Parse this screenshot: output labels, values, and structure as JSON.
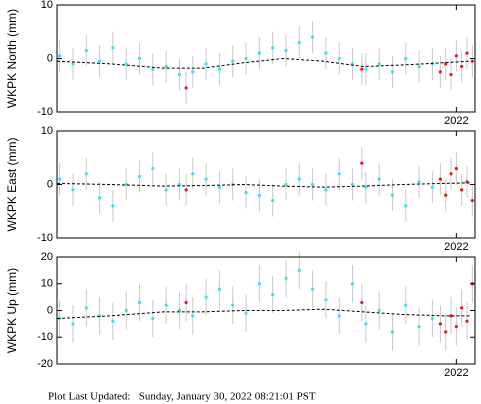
{
  "chart_data": [
    {
      "type": "scatter",
      "ylabel": "WKPK North (mm)",
      "xlim": [
        2019.0,
        2022.14
      ],
      "xticks": [
        2022
      ],
      "ylim": [
        -10,
        10
      ],
      "yticks": [
        10,
        0,
        -10
      ],
      "series": [
        {
          "color": "#2ee6f0",
          "error": 3,
          "x": [
            2019.02,
            2019.12,
            2019.22,
            2019.32,
            2019.42,
            2019.52,
            2019.62,
            2019.72,
            2019.82,
            2019.92,
            2020.02,
            2020.12,
            2020.22,
            2020.32,
            2020.42,
            2020.52,
            2020.62,
            2020.72,
            2020.82,
            2020.92,
            2021.02,
            2021.12,
            2021.22,
            2021.32,
            2021.42,
            2021.52,
            2021.62,
            2021.72,
            2021.82
          ],
          "values": [
            0.5,
            -1,
            1.5,
            -0.5,
            2,
            -1,
            0,
            -2,
            -1.5,
            -3,
            -2.5,
            -1,
            -2,
            -0.5,
            0,
            1,
            2,
            1.5,
            3,
            4,
            1,
            0,
            -1,
            -2,
            -1,
            -2.5,
            0,
            -1.5,
            -1
          ]
        },
        {
          "color": "#e8161c",
          "error": 3,
          "x": [
            2019.97,
            2021.29,
            2021.88,
            2021.92,
            2021.96,
            2022.0,
            2022.04,
            2022.08,
            2022.12
          ],
          "values": [
            -5.5,
            -2,
            -2.5,
            -1,
            -3,
            0.5,
            -1.5,
            1,
            -0.5
          ]
        },
        {
          "type": "line",
          "color": "#000000",
          "x": [
            2019.0,
            2019.4,
            2019.8,
            2020.1,
            2020.4,
            2020.7,
            2021.0,
            2021.3,
            2021.6,
            2021.9,
            2022.1
          ],
          "values": [
            -0.5,
            -1,
            -1.8,
            -1.8,
            -0.8,
            0,
            -0.5,
            -1.5,
            -1.2,
            -0.8,
            -0.5
          ]
        }
      ]
    },
    {
      "type": "scatter",
      "ylabel": "WKPK East (mm)",
      "xlim": [
        2019.0,
        2022.14
      ],
      "xticks": [
        2022
      ],
      "ylim": [
        -10,
        10
      ],
      "yticks": [
        10,
        0,
        -10
      ],
      "series": [
        {
          "color": "#2ee6f0",
          "error": 3,
          "x": [
            2019.02,
            2019.12,
            2019.22,
            2019.32,
            2019.42,
            2019.52,
            2019.62,
            2019.72,
            2019.82,
            2019.92,
            2020.02,
            2020.12,
            2020.22,
            2020.32,
            2020.42,
            2020.52,
            2020.62,
            2020.72,
            2020.82,
            2020.92,
            2021.02,
            2021.12,
            2021.22,
            2021.32,
            2021.42,
            2021.52,
            2021.62,
            2021.72,
            2021.82
          ],
          "values": [
            1,
            -1,
            2,
            -2.5,
            -4,
            0,
            1.5,
            3,
            -1,
            0,
            2,
            1,
            -0.5,
            0,
            -1.5,
            -2,
            -3,
            0,
            1,
            0,
            -1,
            2,
            0,
            -0.5,
            1,
            -2,
            -4,
            0.5,
            -0.5
          ]
        },
        {
          "color": "#e8161c",
          "error": 3,
          "x": [
            2019.97,
            2021.29,
            2021.88,
            2021.92,
            2021.96,
            2022.0,
            2022.04,
            2022.08,
            2022.12
          ],
          "values": [
            -1,
            4,
            1,
            -2,
            2,
            3,
            -1,
            0.5,
            -3
          ]
        },
        {
          "type": "line",
          "color": "#000000",
          "x": [
            2019.0,
            2019.4,
            2019.8,
            2020.1,
            2020.4,
            2020.7,
            2021.0,
            2021.3,
            2021.6,
            2021.9,
            2022.1
          ],
          "values": [
            0.2,
            0,
            -0.3,
            -0.2,
            0,
            -0.3,
            -0.5,
            -0.3,
            0,
            0.2,
            0.3
          ]
        }
      ]
    },
    {
      "type": "scatter",
      "ylabel": "WKPK Up (mm)",
      "xlim": [
        2019.0,
        2022.14
      ],
      "xticks": [
        2022
      ],
      "ylim": [
        -20,
        20
      ],
      "yticks": [
        20,
        10,
        0,
        -10,
        -20
      ],
      "series": [
        {
          "color": "#2ee6f0",
          "error": 7,
          "x": [
            2019.02,
            2019.12,
            2019.22,
            2019.32,
            2019.42,
            2019.52,
            2019.62,
            2019.72,
            2019.82,
            2019.92,
            2020.02,
            2020.12,
            2020.22,
            2020.32,
            2020.42,
            2020.52,
            2020.62,
            2020.72,
            2020.82,
            2020.92,
            2021.02,
            2021.12,
            2021.22,
            2021.32,
            2021.42,
            2021.52,
            2021.62,
            2021.72,
            2021.82
          ],
          "values": [
            -3,
            -5,
            1,
            -2,
            -4,
            0,
            3,
            -3,
            2,
            0,
            -2,
            5,
            8,
            2,
            -1,
            10,
            6,
            12,
            15,
            8,
            4,
            -2,
            10,
            -5,
            0,
            -8,
            2,
            -6,
            -3
          ]
        },
        {
          "color": "#e8161c",
          "error": 7,
          "x": [
            2019.97,
            2021.29,
            2021.88,
            2021.92,
            2021.96,
            2022.0,
            2022.04,
            2022.08,
            2022.12
          ],
          "values": [
            3,
            3,
            -5,
            -8,
            -2,
            -6,
            1,
            -4,
            10
          ]
        },
        {
          "type": "line",
          "color": "#000000",
          "x": [
            2019.0,
            2019.4,
            2019.8,
            2020.1,
            2020.4,
            2020.7,
            2021.0,
            2021.3,
            2021.6,
            2021.9,
            2022.1
          ],
          "values": [
            -3,
            -2,
            -0.5,
            -0.5,
            0,
            0,
            0.5,
            -0.5,
            -1.5,
            -2,
            -2
          ]
        }
      ]
    }
  ],
  "footer": "Plot Last Updated:   Sunday, January 30, 2022 08:21:01 PST"
}
